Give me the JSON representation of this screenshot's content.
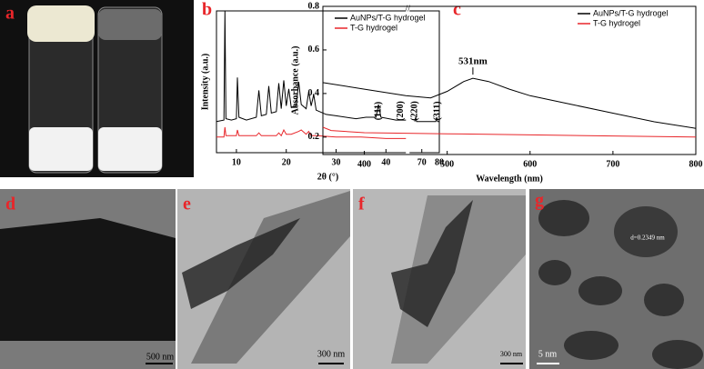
{
  "chart_data": [
    {
      "type": "line",
      "xlabel": "2θ (°)",
      "ylabel": "Intensity (a.u.)",
      "xlim": [
        6,
        80
      ],
      "xbreak": [
        44,
        63
      ],
      "ylim": [
        0,
        100
      ],
      "xticks": [
        10,
        20,
        30,
        40,
        70,
        80
      ],
      "legend": "top-right",
      "series": [
        {
          "name": "AuNPs/T-G hydrogel",
          "color": "#000000",
          "x": [
            6,
            7.5,
            7.7,
            7.9,
            9,
            10,
            10.2,
            10.5,
            12,
            14,
            14.5,
            15,
            16,
            16.5,
            17,
            18,
            18.5,
            19,
            19.5,
            20,
            20.5,
            21,
            22,
            22.5,
            23,
            24,
            24.5,
            25,
            25.5,
            26,
            28,
            30,
            34,
            36,
            38,
            38.5,
            39,
            42,
            44,
            63,
            66,
            66.5,
            67,
            75,
            78,
            78.5,
            79,
            80
          ],
          "values": [
            22,
            23,
            100,
            24,
            23,
            24,
            53,
            25,
            23,
            25,
            44,
            26,
            27,
            47,
            28,
            29,
            49,
            31,
            51,
            33,
            45,
            32,
            33,
            50,
            34,
            31,
            43,
            33,
            41,
            30,
            27,
            26,
            24,
            25,
            25,
            34,
            25,
            23,
            23,
            null,
            22,
            25,
            22,
            22,
            22,
            25,
            22,
            22
          ]
        },
        {
          "name": "T-G hydrogel",
          "color": "#e8262a",
          "x": [
            6,
            7.5,
            7.7,
            7.9,
            10,
            10.2,
            10.5,
            14,
            14.5,
            15,
            18,
            18.5,
            19,
            19.5,
            20,
            21,
            22.5,
            23,
            24,
            24.5,
            25,
            26,
            30,
            35,
            40,
            44
          ],
          "values": [
            11,
            11,
            18,
            12,
            12,
            16,
            12,
            12,
            14,
            12,
            12,
            14,
            12,
            16,
            13,
            13,
            15,
            16,
            13,
            15,
            12,
            12,
            11,
            11,
            10,
            10
          ]
        }
      ],
      "annotations": [
        {
          "text": "(111)",
          "x": 38.5
        },
        {
          "text": "(200)",
          "x": 43
        },
        {
          "text": "(220)",
          "x": 66
        },
        {
          "text": "(311)",
          "x": 79
        }
      ]
    },
    {
      "type": "line",
      "xlabel": "Wavelength (nm)",
      "ylabel": "Absorbance (a.u.)",
      "xlim": [
        350,
        800
      ],
      "ylim": [
        0.12,
        0.8
      ],
      "xticks": [
        400,
        500,
        600,
        700,
        800
      ],
      "yticks": [
        0.2,
        0.4,
        0.6,
        0.8
      ],
      "legend": "top-right",
      "series": [
        {
          "name": "AuNPs/T-G hydrogel",
          "color": "#000000",
          "x": [
            350,
            400,
            450,
            480,
            500,
            520,
            531,
            550,
            575,
            600,
            650,
            700,
            750,
            800
          ],
          "values": [
            0.45,
            0.42,
            0.39,
            0.38,
            0.41,
            0.455,
            0.47,
            0.455,
            0.42,
            0.39,
            0.35,
            0.31,
            0.27,
            0.24
          ]
        },
        {
          "name": "T-G hydrogel",
          "color": "#e8262a",
          "x": [
            350,
            360,
            400,
            500,
            600,
            700,
            800
          ],
          "values": [
            0.245,
            0.23,
            0.22,
            0.215,
            0.21,
            0.205,
            0.2
          ]
        }
      ],
      "annotations": [
        {
          "text": "531nm",
          "x": 531,
          "y": 0.52
        }
      ]
    }
  ],
  "panels": [
    {
      "label": "a"
    },
    {
      "label": "b"
    },
    {
      "label": "c"
    },
    {
      "label": "d",
      "scale": "500 nm"
    },
    {
      "label": "e",
      "scale": "300 nm"
    },
    {
      "label": "f",
      "scale": "300 nm"
    },
    {
      "label": "g",
      "scale": "5 nm",
      "note": "d=0.2349 nm"
    }
  ]
}
